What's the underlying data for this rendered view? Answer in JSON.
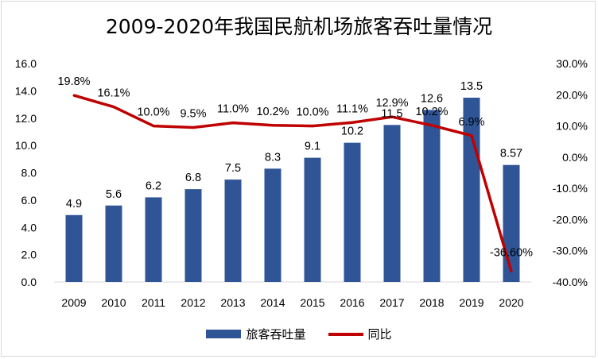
{
  "chart_data": {
    "type": "bar+line",
    "title": "2009-2020年我国民航机场旅客吞吐量情况",
    "categories": [
      "2009",
      "2010",
      "2011",
      "2012",
      "2013",
      "2014",
      "2015",
      "2016",
      "2017",
      "2018",
      "2019",
      "2020"
    ],
    "series": [
      {
        "name": "旅客吞吐量",
        "type": "bar",
        "axis": "left",
        "color": "#2f5597",
        "values": [
          4.9,
          5.6,
          6.2,
          6.8,
          7.5,
          8.3,
          9.1,
          10.2,
          11.5,
          12.6,
          13.5,
          8.57
        ],
        "labels": [
          "4.9",
          "5.6",
          "6.2",
          "6.8",
          "7.5",
          "8.3",
          "9.1",
          "10.2",
          "11.5",
          "12.6",
          "13.5",
          "8.57"
        ]
      },
      {
        "name": "同比",
        "type": "line",
        "axis": "right",
        "color": "#c00000",
        "values": [
          19.8,
          16.1,
          10.0,
          9.5,
          11.0,
          10.2,
          10.0,
          11.1,
          12.9,
          10.2,
          6.9,
          -36.6
        ],
        "labels": [
          "19.8%",
          "16.1%",
          "10.0%",
          "9.5%",
          "11.0%",
          "10.2%",
          "10.0%",
          "11.1%",
          "12.9%",
          "10.2%",
          "6.9%",
          "-36.60%"
        ]
      }
    ],
    "y_left": {
      "min": 0,
      "max": 16,
      "ticks": [
        0,
        2,
        4,
        6,
        8,
        10,
        12,
        14,
        16
      ],
      "tick_labels": [
        "0.0",
        "2.0",
        "4.0",
        "6.0",
        "8.0",
        "10.0",
        "12.0",
        "14.0",
        "16.0"
      ]
    },
    "y_right": {
      "min": -40,
      "max": 30,
      "ticks": [
        -40,
        -30,
        -20,
        -10,
        0,
        10,
        20,
        30
      ],
      "tick_labels": [
        "-40.0%",
        "-30.0%",
        "-20.0%",
        "-10.0%",
        "0.0%",
        "10.0%",
        "20.0%",
        "30.0%"
      ]
    },
    "grid": false,
    "legend_position": "bottom"
  }
}
